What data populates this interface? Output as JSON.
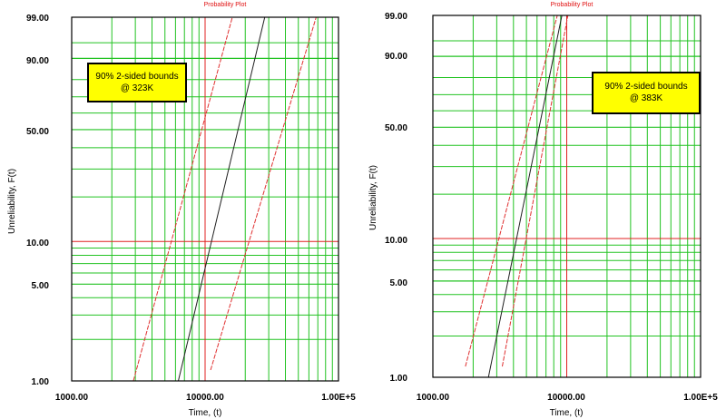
{
  "colors": {
    "major_grid": "#e02020",
    "minor_grid": "#22c322",
    "fit_line": "#202020",
    "bound_line": "#e03030",
    "annotation_fill": "#ffff00",
    "title": "#e01010"
  },
  "chart_data": [
    {
      "type": "line",
      "title": "Probability Plot",
      "xlabel": "Time, (t)",
      "ylabel": "Unreliability, F(t)",
      "x_scale": "log",
      "y_scale": "weibull-probability",
      "xlim": [
        1000,
        100000
      ],
      "ylim": [
        1.0,
        99.0
      ],
      "x_tick_labels": [
        "1000.00",
        "10000.00",
        "1.00E+5"
      ],
      "y_tick_labels": [
        "1.00",
        "5.00",
        "10.00",
        "50.00",
        "90.00",
        "99.00"
      ],
      "annotation": [
        "90% 2-sided bounds",
        "@ 323K"
      ],
      "series": [
        {
          "style": "fit",
          "points": [
            [
              6300,
              1.0
            ],
            [
              28000,
              99.0
            ]
          ]
        },
        {
          "style": "bound",
          "points": [
            [
              2900,
              1.0
            ],
            [
              16000,
              99.0
            ]
          ]
        },
        {
          "style": "bound",
          "points": [
            [
              11000,
              1.2
            ],
            [
              68000,
              99.0
            ]
          ]
        }
      ]
    },
    {
      "type": "line",
      "title": "Probability Plot",
      "xlabel": "Time, (t)",
      "ylabel": "Unreliability, F(t)",
      "x_scale": "log",
      "y_scale": "weibull-probability",
      "xlim": [
        1000,
        100000
      ],
      "ylim": [
        1.0,
        99.0
      ],
      "x_tick_labels": [
        "1000.00",
        "10000.00",
        "1.00E+5"
      ],
      "y_tick_labels": [
        "1.00",
        "5.00",
        "10.00",
        "50.00",
        "90.00",
        "99.00"
      ],
      "annotation": [
        "90% 2-sided bounds",
        "@ 383K"
      ],
      "series": [
        {
          "style": "fit",
          "points": [
            [
              2600,
              1.0
            ],
            [
              9200,
              99.0
            ]
          ]
        },
        {
          "style": "bound",
          "points": [
            [
              1750,
              1.2
            ],
            [
              8500,
              99.0
            ]
          ]
        },
        {
          "style": "bound",
          "points": [
            [
              3300,
              1.2
            ],
            [
              10200,
              99.0
            ]
          ]
        }
      ]
    }
  ]
}
